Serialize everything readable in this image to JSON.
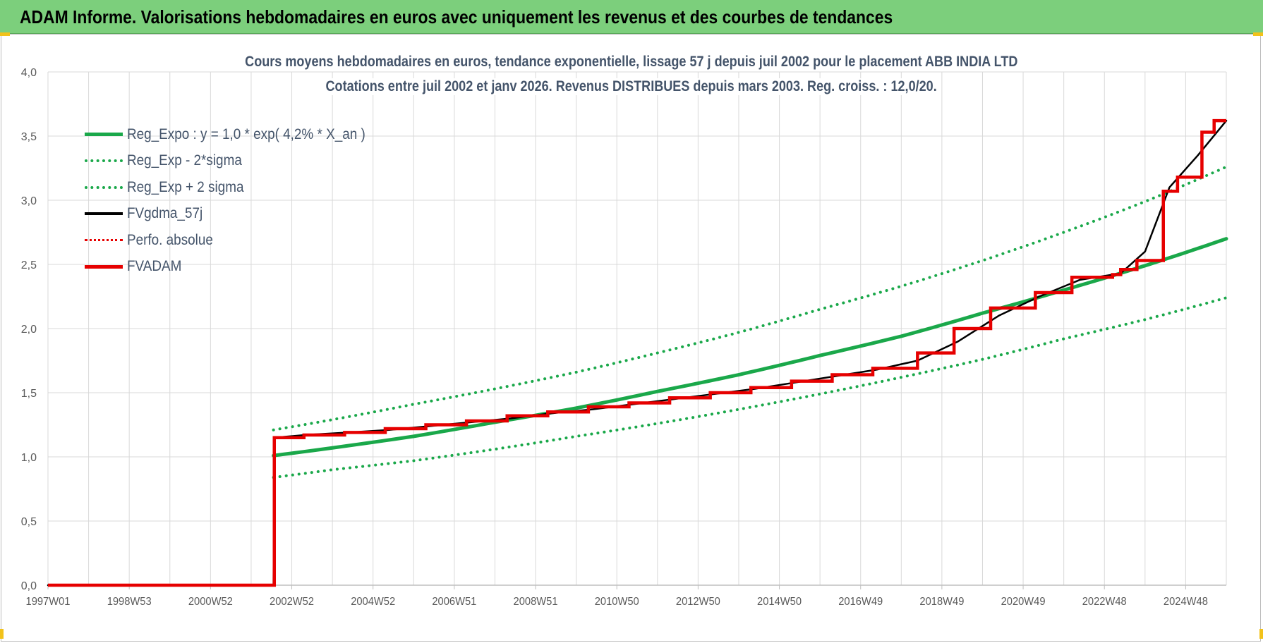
{
  "banner": {
    "title": "ADAM Informe. Valorisations hebdomadaires en euros avec uniquement les revenus et des courbes de tendances"
  },
  "colors": {
    "banner_bg": "#7ccf7c",
    "green_series": "#1aa84a",
    "black_series": "#000000",
    "red_series": "#e60000",
    "title_text": "#44546a",
    "grid": "#d9d9d9"
  },
  "chart_data": {
    "type": "line",
    "title": "Cours moyens hebdomadaires en euros, tendance exponentielle, lissage 57 j depuis juil 2002 pour le placement ABB INDIA LTD",
    "subtitle": "Cotations entre juil 2002 et janv 2026. Revenus DISTRIBUES depuis mars 2003. Reg. croiss. : 12,0/20.",
    "xlabel": "",
    "ylabel": "",
    "xlim": [
      1997.0,
      2026.0
    ],
    "ylim": [
      0,
      4.0
    ],
    "y_ticks": [
      "0,0",
      "0,5",
      "1,0",
      "1,5",
      "2,0",
      "2,5",
      "3,0",
      "3,5",
      "4,0"
    ],
    "x_ticks": [
      "1997W01",
      "1998W53",
      "2000W52",
      "2002W52",
      "2004W52",
      "2006W51",
      "2008W51",
      "2010W50",
      "2012W50",
      "2014W50",
      "2016W49",
      "2018W49",
      "2020W49",
      "2022W48",
      "2024W48"
    ],
    "grid": "on",
    "legend_position": "top-left",
    "series": [
      {
        "name": "Reg_Expo : y = 1,0 * exp( 4,2% *  X_an )",
        "style": "solid-thick",
        "color": "#1aa84a",
        "x": [
          2002.55,
          2004.0,
          2006.0,
          2008.0,
          2010.0,
          2012.0,
          2014.0,
          2016.0,
          2018.0,
          2020.0,
          2022.0,
          2024.0,
          2026.0
        ],
        "values": [
          1.01,
          1.07,
          1.16,
          1.27,
          1.38,
          1.51,
          1.64,
          1.79,
          1.94,
          2.12,
          2.3,
          2.49,
          2.7
        ]
      },
      {
        "name": "Reg_Exp - 2*sigma",
        "style": "dotted",
        "color": "#1aa84a",
        "x": [
          2002.55,
          2004.0,
          2006.0,
          2008.0,
          2010.0,
          2012.0,
          2014.0,
          2016.0,
          2018.0,
          2020.0,
          2022.0,
          2024.0,
          2026.0
        ],
        "values": [
          0.84,
          0.9,
          0.97,
          1.06,
          1.16,
          1.26,
          1.37,
          1.49,
          1.62,
          1.76,
          1.92,
          2.07,
          2.24
        ]
      },
      {
        "name": "Reg_Exp + 2 sigma",
        "style": "dotted",
        "color": "#1aa84a",
        "x": [
          2002.55,
          2004.0,
          2006.0,
          2008.0,
          2010.0,
          2012.0,
          2014.0,
          2016.0,
          2018.0,
          2020.0,
          2022.0,
          2024.0,
          2026.0
        ],
        "values": [
          1.21,
          1.29,
          1.41,
          1.53,
          1.66,
          1.81,
          1.97,
          2.15,
          2.33,
          2.53,
          2.75,
          2.99,
          3.26
        ]
      },
      {
        "name": "FVgdma_57j",
        "style": "solid",
        "color": "#000000",
        "x": [
          1997.0,
          2002.55,
          2002.57,
          2003.3,
          2004.4,
          2005.4,
          2006.4,
          2007.4,
          2008.4,
          2009.4,
          2010.4,
          2011.4,
          2012.4,
          2013.4,
          2014.4,
          2015.4,
          2016.4,
          2017.4,
          2018.4,
          2019.4,
          2020.4,
          2021.4,
          2022.4,
          2023.4,
          2024.0,
          2024.6,
          2025.3,
          2026.0
        ],
        "values": [
          0.0,
          0.0,
          1.15,
          1.17,
          1.19,
          1.21,
          1.24,
          1.27,
          1.3,
          1.34,
          1.37,
          1.41,
          1.45,
          1.49,
          1.53,
          1.58,
          1.63,
          1.68,
          1.75,
          1.9,
          2.1,
          2.25,
          2.38,
          2.43,
          2.6,
          3.1,
          3.35,
          3.62
        ]
      },
      {
        "name": "Perfo. absolue",
        "style": "dotted",
        "color": "#e60000",
        "x": [],
        "values": []
      },
      {
        "name": "FVADAM",
        "style": "step-thick",
        "color": "#e60000",
        "x": [
          1997.0,
          2002.55,
          2002.57,
          2003.3,
          2004.3,
          2005.3,
          2006.3,
          2007.3,
          2008.3,
          2009.3,
          2010.3,
          2011.3,
          2012.3,
          2013.3,
          2014.3,
          2015.3,
          2016.3,
          2017.3,
          2018.4,
          2019.3,
          2020.2,
          2021.3,
          2022.2,
          2023.2,
          2023.4,
          2023.8,
          2024.45,
          2024.8,
          2025.4,
          2025.7,
          2026.0
        ],
        "values": [
          0.0,
          0.0,
          1.15,
          1.17,
          1.19,
          1.22,
          1.25,
          1.28,
          1.32,
          1.35,
          1.39,
          1.42,
          1.46,
          1.5,
          1.54,
          1.59,
          1.64,
          1.69,
          1.81,
          2.0,
          2.16,
          2.28,
          2.4,
          2.42,
          2.46,
          2.53,
          3.07,
          3.18,
          3.53,
          3.62,
          3.62
        ]
      }
    ]
  }
}
